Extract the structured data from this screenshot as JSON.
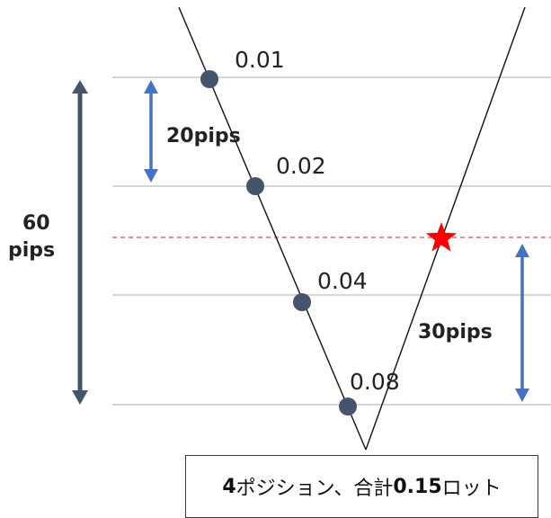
{
  "diagram": {
    "entries": [
      {
        "lot": "0.01"
      },
      {
        "lot": "0.02"
      },
      {
        "lot": "0.04"
      },
      {
        "lot": "0.08"
      }
    ],
    "interval_label": "20pips",
    "range_label_line1": "60",
    "range_label_line2": "pips",
    "tp_label": "30pips",
    "summary": {
      "positions_count": "4",
      "positions_text": "ポジション、合計",
      "total_lot": "0.15",
      "lot_unit": "ロット"
    },
    "colors": {
      "gridline": "#bfbfbf",
      "price_line": "#111111",
      "entry_dot": "#44546a",
      "dark_arrow": "#44546a",
      "blue_arrow": "#4472c4",
      "tp_line": "#e8484d",
      "star": "#ff0000"
    },
    "icons": {
      "entry_marker": "circle",
      "tp_marker": "star-icon"
    }
  }
}
